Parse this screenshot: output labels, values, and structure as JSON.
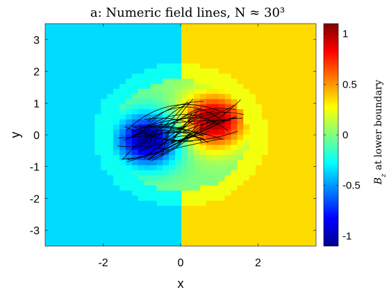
{
  "chart_data": {
    "type": "heatmap",
    "title": "a: Numeric field lines, N ≈ 30³",
    "xlabel": "x",
    "ylabel": "y",
    "xlim": [
      -3.5,
      3.5
    ],
    "ylim": [
      -3.5,
      3.5
    ],
    "xticks": [
      -2,
      0,
      2
    ],
    "yticks": [
      -3,
      -2,
      -1,
      0,
      1,
      2,
      3
    ],
    "colorbar": {
      "label": "B_z at lower boundary",
      "label_prefix": "B",
      "label_subscript": "z",
      "label_suffix": "at lower boundary",
      "range": [
        -1.1,
        1.1
      ],
      "ticks": [
        1,
        0.5,
        0,
        -0.5,
        -1
      ],
      "tick_labels": [
        "1",
        "0.5",
        "0",
        "-0.5",
        "-1"
      ],
      "colormap": "jet"
    },
    "background": {
      "left_half_value": -0.35,
      "right_half_value": 0.35,
      "ring_inner_radius": 1.75,
      "ring_outer_radius": 2.25,
      "ring_value_left": -0.25,
      "ring_value_right": 0.25
    },
    "sources": [
      {
        "x": -0.85,
        "y": -0.15,
        "peak": -1.05,
        "width": 0.85
      },
      {
        "x": 0.85,
        "y": 0.45,
        "peak": 1.05,
        "width": 0.85
      }
    ],
    "field_lines": {
      "count": 42,
      "color": "#000000",
      "footpoint_negative": [
        -0.85,
        -0.15
      ],
      "footpoint_positive": [
        0.85,
        0.45
      ]
    },
    "grid": false,
    "legend": "none"
  }
}
